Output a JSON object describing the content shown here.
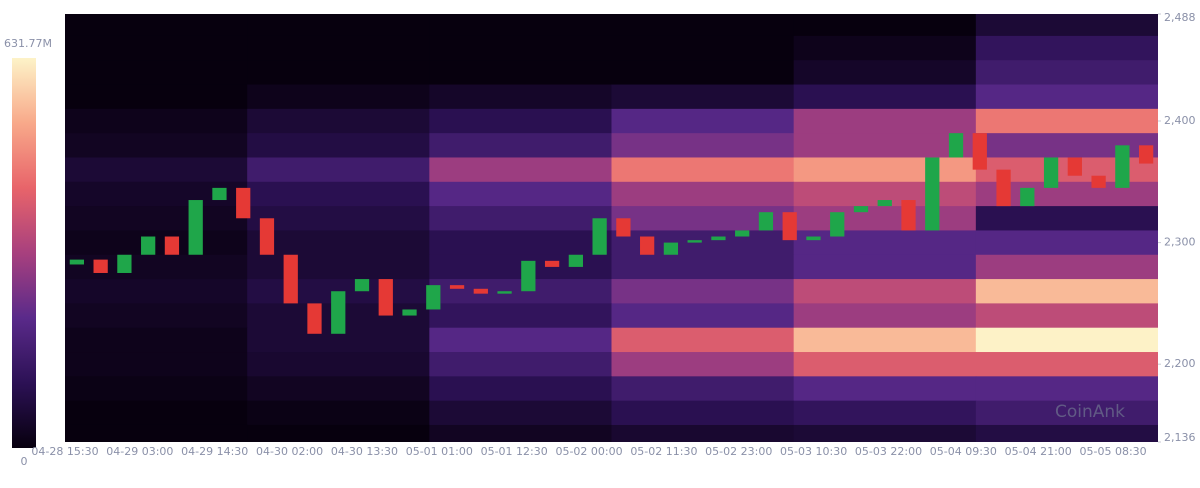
{
  "chart_data": {
    "type": "heatmap",
    "watermark": "CoinAnk",
    "x": [
      "04-28 15:30",
      "04-29 03:00",
      "04-29 14:30",
      "04-30 02:00",
      "04-30 13:30",
      "05-01 01:00",
      "05-01 12:30",
      "05-02 00:00",
      "05-02 11:30",
      "05-02 23:00",
      "05-03 10:30",
      "05-03 22:00",
      "05-04 09:30",
      "05-04 21:00",
      "05-05 08:30"
    ],
    "ylim": [
      2136,
      2488
    ],
    "yticks": [
      {
        "value": 2136,
        "label": "2,136"
      },
      {
        "value": 2200,
        "label": "2,200"
      },
      {
        "value": 2300,
        "label": "2,300"
      },
      {
        "value": 2400,
        "label": "2,400"
      },
      {
        "value": 2488,
        "label": "2,488"
      }
    ],
    "colorbar": {
      "ticks": [
        {
          "value": 0,
          "label": "0"
        },
        {
          "value": 631.77,
          "label": "631.77M"
        }
      ]
    },
    "colorscale": [
      "#07000e",
      "#2c1155",
      "#5a2a8a",
      "#a8407e",
      "#e8646a",
      "#f8a98a",
      "#fdf3c8"
    ],
    "heatmap": {
      "levels": [
        2480,
        2460,
        2440,
        2420,
        2400,
        2380,
        2360,
        2340,
        2320,
        2300,
        2280,
        2260,
        2240,
        2220,
        2200,
        2180,
        2160,
        2140
      ],
      "values": [
        [
          0,
          0,
          0,
          0,
          0,
          60
        ],
        [
          0,
          0,
          0,
          0,
          20,
          120
        ],
        [
          0,
          0,
          0,
          0,
          40,
          150
        ],
        [
          0,
          20,
          40,
          60,
          100,
          200
        ],
        [
          20,
          60,
          100,
          200,
          300,
          450
        ],
        [
          30,
          80,
          150,
          250,
          300,
          250
        ],
        [
          60,
          150,
          300,
          450,
          500,
          400
        ],
        [
          40,
          100,
          200,
          300,
          350,
          300
        ],
        [
          30,
          80,
          150,
          250,
          300,
          100
        ],
        [
          20,
          60,
          100,
          150,
          200,
          200
        ],
        [
          30,
          60,
          100,
          150,
          200,
          300
        ],
        [
          40,
          80,
          150,
          250,
          350,
          550
        ],
        [
          30,
          60,
          120,
          200,
          300,
          350
        ],
        [
          20,
          60,
          200,
          400,
          550,
          630
        ],
        [
          20,
          50,
          150,
          300,
          400,
          400
        ],
        [
          10,
          30,
          100,
          150,
          200,
          200
        ],
        [
          0,
          10,
          60,
          100,
          120,
          150
        ],
        [
          0,
          0,
          30,
          50,
          60,
          80
        ]
      ]
    },
    "candles": {
      "up_color": "#1fa64a",
      "down_color": "#e53935",
      "open": [
        2282,
        2286,
        2275,
        2290,
        2305,
        2290,
        2335,
        2345,
        2320,
        2290,
        2250,
        2225,
        2260,
        2270,
        2240,
        2245,
        2265,
        2262,
        2258,
        2260,
        2285,
        2280,
        2290,
        2320,
        2305,
        2290,
        2300,
        2302,
        2305,
        2310,
        2325,
        2302,
        2305,
        2325,
        2330,
        2335,
        2310,
        2370,
        2390,
        2360,
        2330,
        2345,
        2370,
        2355,
        2345,
        2380
      ],
      "close": [
        2286,
        2275,
        2290,
        2305,
        2290,
        2335,
        2345,
        2320,
        2290,
        2250,
        2225,
        2260,
        2270,
        2240,
        2245,
        2265,
        2262,
        2258,
        2260,
        2285,
        2280,
        2290,
        2320,
        2305,
        2290,
        2300,
        2302,
        2305,
        2310,
        2325,
        2302,
        2305,
        2325,
        2330,
        2335,
        2310,
        2370,
        2390,
        2360,
        2330,
        2345,
        2370,
        2355,
        2345,
        2380,
        2365
      ]
    }
  }
}
